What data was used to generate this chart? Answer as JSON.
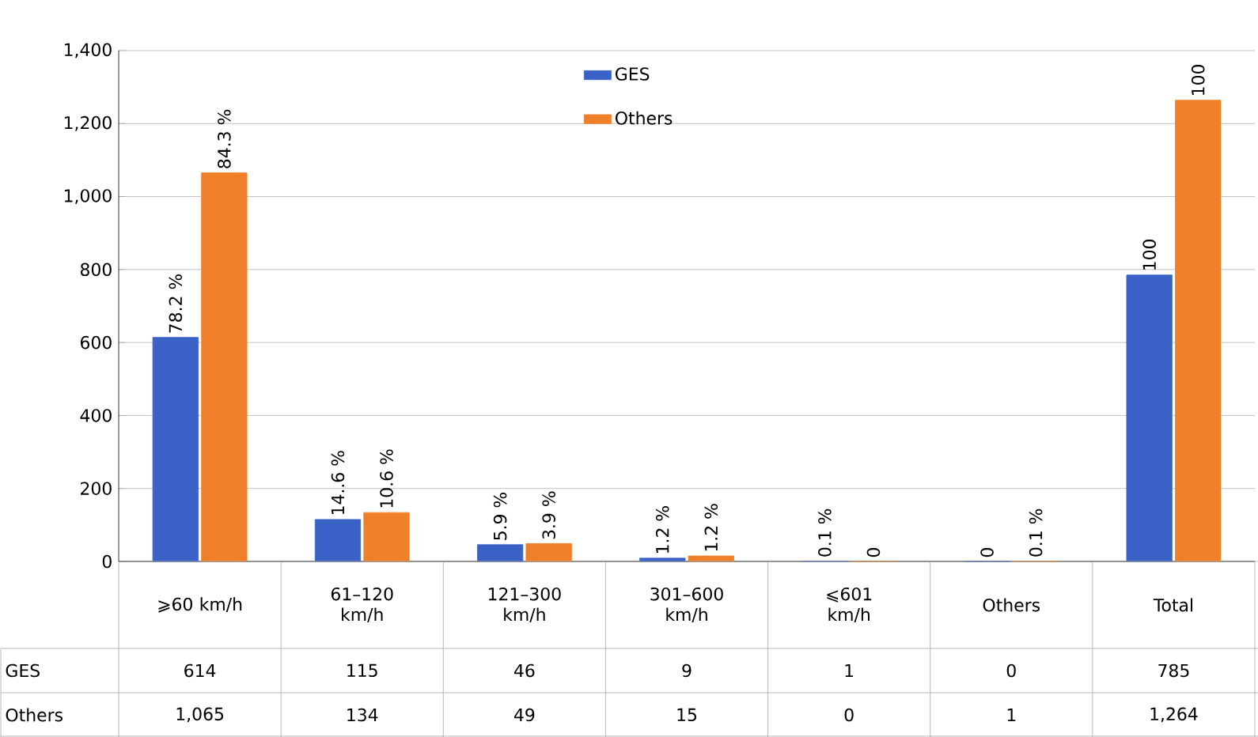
{
  "chart_data": {
    "type": "bar",
    "categories": [
      "⩾60 km/h",
      "61–120 km/h",
      "121–300 km/h",
      "301–600 km/h",
      "⩽601 km/h",
      "Others",
      "Total"
    ],
    "series": [
      {
        "name": "GES",
        "color": "#3a62c6",
        "values": [
          614,
          115,
          46,
          9,
          1,
          0,
          785
        ],
        "value_labels": [
          "614",
          "115",
          "46",
          "9",
          "1",
          "0",
          "785"
        ]
      },
      {
        "name": "Others",
        "color": "#f07f2a",
        "values": [
          1065,
          134,
          49,
          15,
          0,
          1,
          1264
        ],
        "value_labels": [
          "1,065",
          "134",
          "49",
          "15",
          "0",
          "1",
          "1,264"
        ]
      }
    ],
    "annotations": [
      {
        "text": "78.2 %",
        "x": "⩾60 km/h",
        "y": 614
      },
      {
        "text": "14..6 %",
        "x": "61–120 km/h",
        "y": 115
      },
      {
        "text": "5.9 %",
        "x": "121–300 km/h",
        "y": 46
      },
      {
        "text": "1.2 %",
        "x": "301–600 km/h",
        "y": 9
      },
      {
        "text": "0.1 %",
        "x": "⩽601 km/h",
        "y": 1
      },
      {
        "text": "0",
        "x": "Others",
        "y": 0
      },
      {
        "text": "100",
        "x": "Total",
        "y": 785
      },
      {
        "text": "84.3 %",
        "x": "⩾60 km/h",
        "y": 1065
      },
      {
        "text": "10.6 %",
        "x": "61–120 km/h",
        "y": 134
      },
      {
        "text": "3.9 %",
        "x": "121–300 km/h",
        "y": 49
      },
      {
        "text": "1.2 %",
        "x": "301–600 km/h",
        "y": 15
      },
      {
        "text": "0",
        "x": "⩽601 km/h",
        "y": 0
      },
      {
        "text": "0.1 %",
        "x": "Others",
        "y": 1
      },
      {
        "text": "100",
        "x": "Total",
        "y": 1264
      }
    ],
    "ylim": [
      0,
      1400
    ],
    "yticks": [
      0,
      200,
      400,
      600,
      800,
      {
        "value": 1000,
        "label": "1,000"
      },
      {
        "value": 1200,
        "label": "1,200"
      },
      {
        "value": 1400,
        "label": "1,400"
      }
    ],
    "grid": "y",
    "legend": "top"
  }
}
